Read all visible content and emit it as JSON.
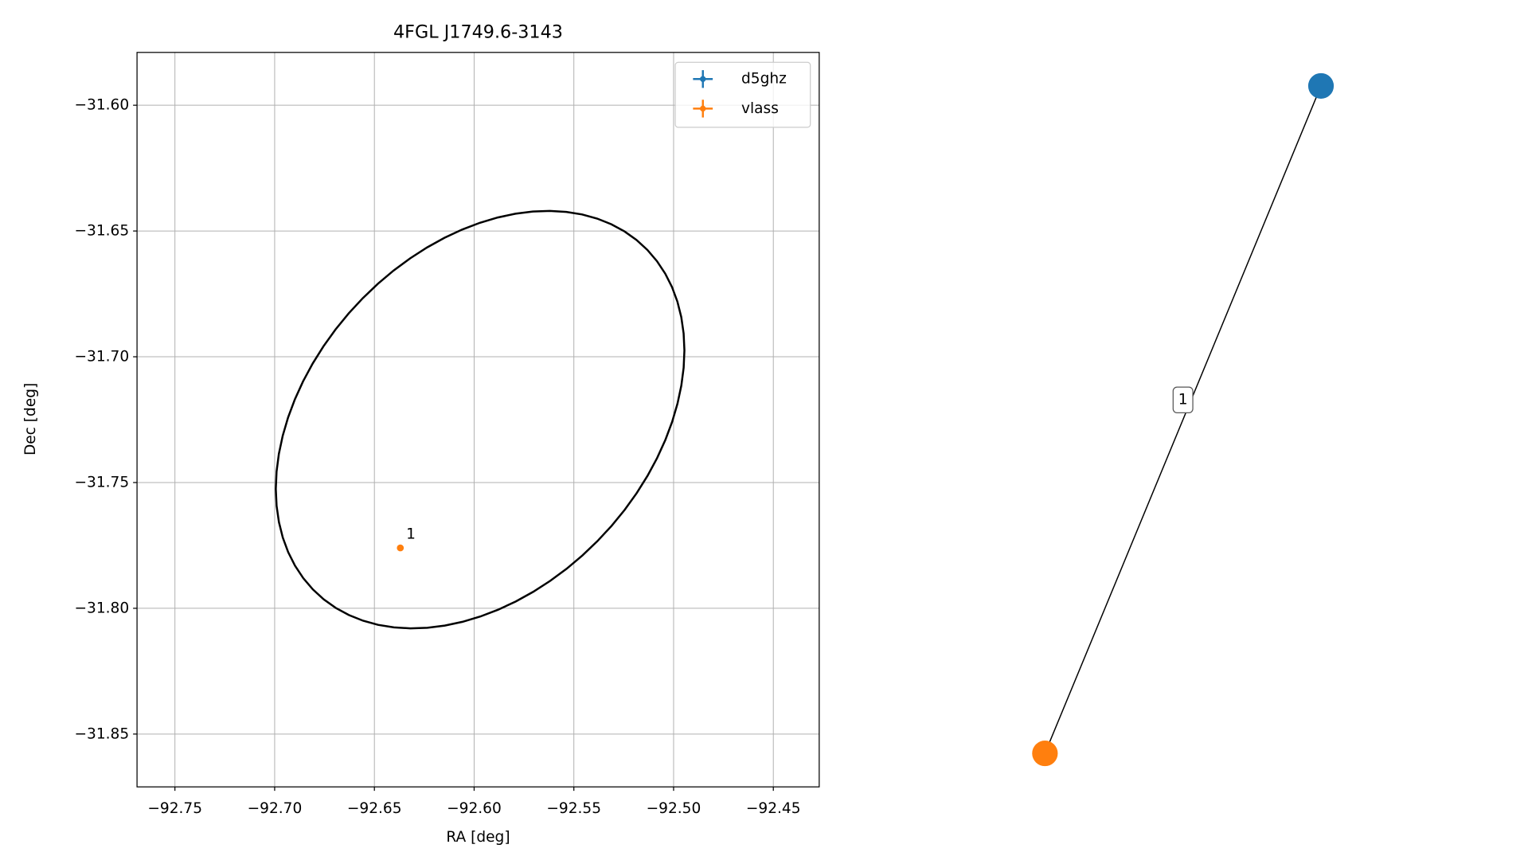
{
  "chart_data": {
    "type": "scatter",
    "title": "4FGL J1749.6-3143",
    "x_label": "RA [deg]",
    "y_label": "Dec [deg]",
    "xlim": [
      -92.769,
      -92.427
    ],
    "ylim": [
      -31.871,
      -31.579
    ],
    "xticks": [
      {
        "value": -92.75,
        "label": "−92.75"
      },
      {
        "value": -92.7,
        "label": "−92.70"
      },
      {
        "value": -92.65,
        "label": "−92.65"
      },
      {
        "value": -92.6,
        "label": "−92.60"
      },
      {
        "value": -92.55,
        "label": "−92.55"
      },
      {
        "value": -92.5,
        "label": "−92.50"
      },
      {
        "value": -92.45,
        "label": "−92.45"
      }
    ],
    "yticks": [
      {
        "value": -31.6,
        "label": "−31.60"
      },
      {
        "value": -31.65,
        "label": "−31.65"
      },
      {
        "value": -31.7,
        "label": "−31.70"
      },
      {
        "value": -31.75,
        "label": "−31.75"
      },
      {
        "value": -31.8,
        "label": "−31.80"
      },
      {
        "value": -31.85,
        "label": "−31.85"
      }
    ],
    "grid": true,
    "legend": "upper right",
    "series": [
      {
        "name": "d5ghz",
        "color": "#1f77b4",
        "x": [],
        "y": [],
        "labels": []
      },
      {
        "name": "vlass",
        "color": "#ff7f0e",
        "x": [
          -92.637
        ],
        "y": [
          -31.776
        ],
        "labels": [
          "1"
        ]
      }
    ],
    "ellipse": {
      "center": [
        -92.597,
        -31.725
      ],
      "semi_major": 0.1097,
      "semi_minor": 0.0731,
      "angle": 28.7,
      "color": "#000000"
    }
  },
  "graph": {
    "nodes": [
      {
        "color": "#1f77b4"
      },
      {
        "color": "#ff7f0e"
      }
    ],
    "edges": [
      {
        "source": 0,
        "target": 1,
        "label": "1"
      }
    ]
  }
}
